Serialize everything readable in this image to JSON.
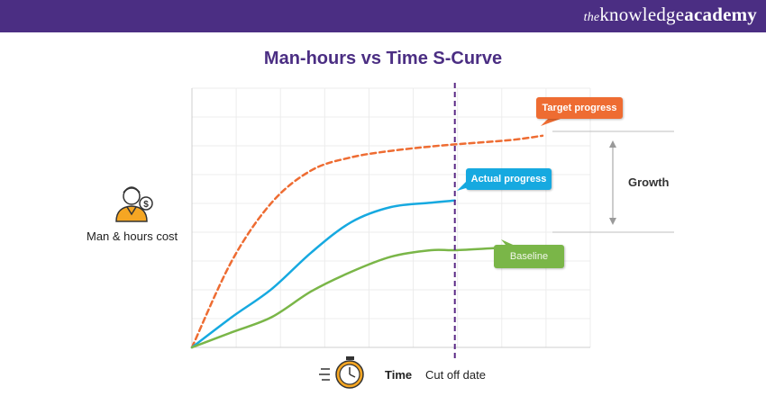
{
  "brand": {
    "prefix": "the",
    "word1": "knowledge",
    "word2": "academy"
  },
  "header_color": "#4b2e83",
  "chart_data": {
    "type": "line",
    "title": "Man-hours vs Time S-Curve",
    "ylabel": "Man & hours cost",
    "xlabel": "Time",
    "cutoff_label": "Cut off date",
    "growth_label": "Growth",
    "xlim": [
      0,
      100
    ],
    "ylim": [
      0,
      100
    ],
    "cutoff_x": 66,
    "grid": true,
    "series": [
      {
        "name": "Target progress",
        "style": "dashed",
        "color": "#ee6c32",
        "x": [
          0,
          10,
          20,
          30,
          40,
          50,
          60,
          66,
          80,
          88
        ],
        "y": [
          0,
          40,
          67,
          82,
          88,
          91,
          93,
          94,
          96,
          98
        ]
      },
      {
        "name": "Actual progress",
        "style": "solid",
        "color": "#16a9e0",
        "x": [
          0,
          10,
          20,
          30,
          40,
          50,
          60,
          66
        ],
        "y": [
          0,
          14,
          27,
          44,
          58,
          65,
          67,
          68
        ]
      },
      {
        "name": "Baseline",
        "style": "solid",
        "color": "#7ab648",
        "x": [
          0,
          10,
          20,
          30,
          40,
          50,
          60,
          66,
          76
        ],
        "y": [
          0,
          7,
          14,
          26,
          35,
          42,
          45,
          45,
          46
        ]
      }
    ]
  },
  "icons": {
    "person": "person-dollar-icon",
    "clock": "clock-icon"
  }
}
